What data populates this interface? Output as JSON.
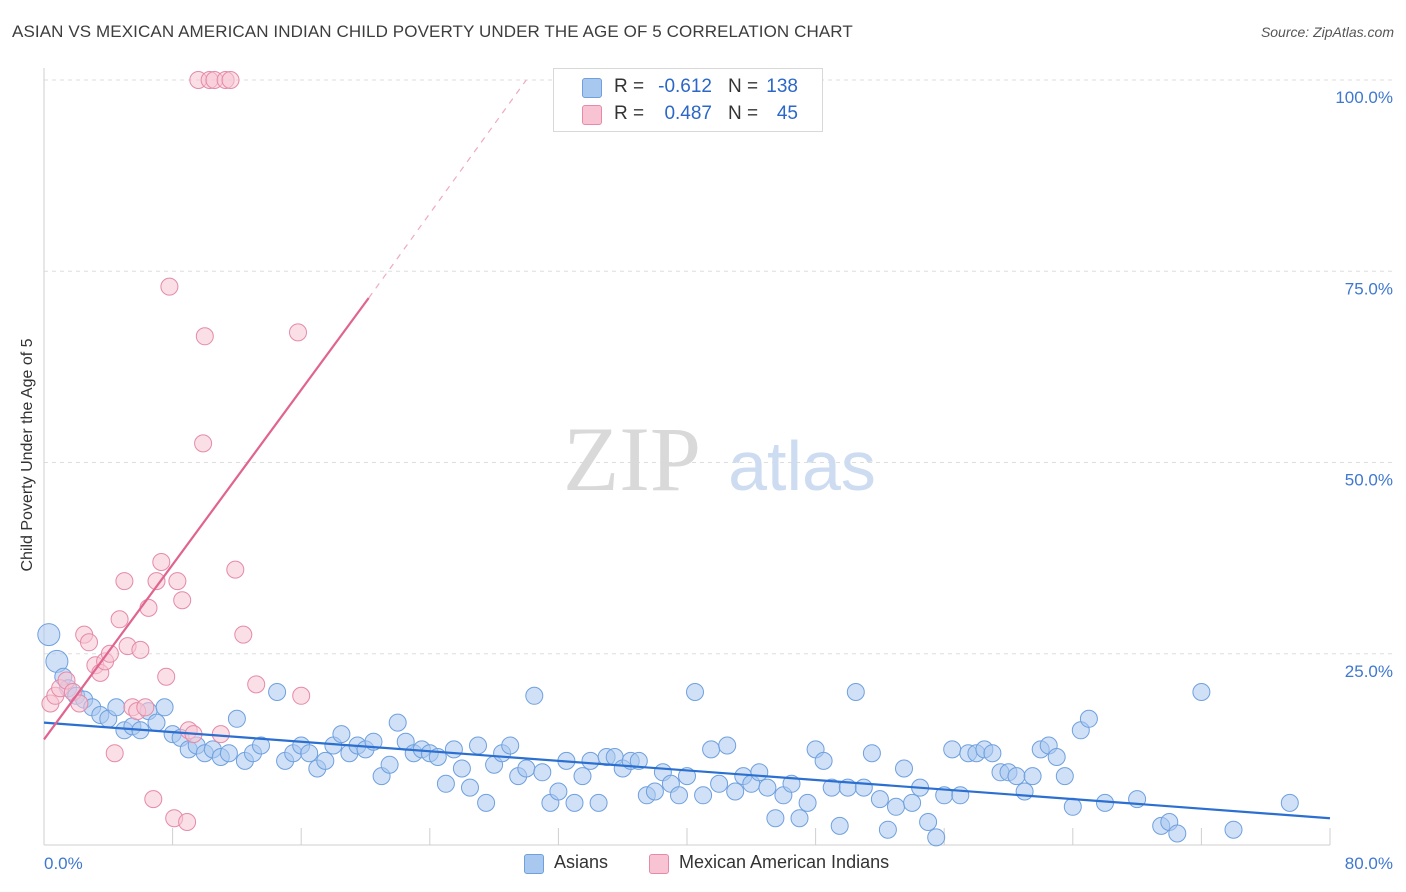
{
  "title": "ASIAN VS MEXICAN AMERICAN INDIAN CHILD POVERTY UNDER THE AGE OF 5 CORRELATION CHART",
  "source": "Source: ZipAtlas.com",
  "watermark": {
    "zip": "ZIP",
    "atlas": "atlas"
  },
  "legend": {
    "r_label": "R =",
    "n_label": "N =",
    "rows": [
      {
        "r": "-0.612",
        "n": "138",
        "color": "#a9c8f0",
        "border": "#6f9fdc"
      },
      {
        "r": "0.487",
        "n": "45",
        "color": "#f8c4d4",
        "border": "#e58aa8"
      }
    ]
  },
  "chart_data": {
    "type": "scatter",
    "xlabel": "",
    "ylabel": "Child Poverty Under the Age of 5",
    "xlim": [
      0,
      80
    ],
    "ylim": [
      0,
      100
    ],
    "x_ticks": [
      "0.0%",
      "80.0%"
    ],
    "y_ticks": [
      {
        "value": 25,
        "label": "25.0%"
      },
      {
        "value": 50,
        "label": "50.0%"
      },
      {
        "value": 75,
        "label": "75.0%"
      },
      {
        "value": 100,
        "label": "100.0%"
      }
    ],
    "grid": "horizontal dashed",
    "legend_position": "top-center",
    "series": [
      {
        "name": "Asians",
        "color": "#6fa0de",
        "fill": "#a9c8f0",
        "trend": {
          "x": [
            0,
            80
          ],
          "y": [
            16.0,
            3.5
          ],
          "color": "#2b6fd0"
        },
        "points": [
          [
            0.3,
            27.5
          ],
          [
            0.8,
            24
          ],
          [
            1.2,
            22
          ],
          [
            1.5,
            20.5
          ],
          [
            2.0,
            19.5
          ],
          [
            2.5,
            19
          ],
          [
            3.0,
            18
          ],
          [
            3.5,
            17
          ],
          [
            4.0,
            16.5
          ],
          [
            4.5,
            18
          ],
          [
            5.0,
            15
          ],
          [
            5.5,
            15.5
          ],
          [
            6.0,
            15
          ],
          [
            6.5,
            17.5
          ],
          [
            7.0,
            16
          ],
          [
            7.5,
            18
          ],
          [
            8.0,
            14.5
          ],
          [
            8.5,
            14
          ],
          [
            9.0,
            12.5
          ],
          [
            9.5,
            13
          ],
          [
            10.0,
            12
          ],
          [
            10.5,
            12.5
          ],
          [
            11.0,
            11.5
          ],
          [
            11.5,
            12
          ],
          [
            12.0,
            16.5
          ],
          [
            12.5,
            11
          ],
          [
            13.0,
            12
          ],
          [
            13.5,
            13
          ],
          [
            14.5,
            20
          ],
          [
            15.0,
            11
          ],
          [
            15.5,
            12
          ],
          [
            16.0,
            13
          ],
          [
            16.5,
            12
          ],
          [
            17.0,
            10
          ],
          [
            17.5,
            11
          ],
          [
            18.0,
            13
          ],
          [
            18.5,
            14.5
          ],
          [
            19.0,
            12
          ],
          [
            19.5,
            13
          ],
          [
            20.0,
            12.5
          ],
          [
            20.5,
            13.5
          ],
          [
            21.0,
            9
          ],
          [
            21.5,
            10.5
          ],
          [
            22.0,
            16
          ],
          [
            22.5,
            13.5
          ],
          [
            23.0,
            12
          ],
          [
            23.5,
            12.5
          ],
          [
            24.0,
            12
          ],
          [
            24.5,
            11.5
          ],
          [
            25.0,
            8
          ],
          [
            25.5,
            12.5
          ],
          [
            26.0,
            10
          ],
          [
            26.5,
            7.5
          ],
          [
            27.0,
            13
          ],
          [
            27.5,
            5.5
          ],
          [
            28.0,
            10.5
          ],
          [
            28.5,
            12
          ],
          [
            29.0,
            13
          ],
          [
            29.5,
            9
          ],
          [
            30.0,
            10
          ],
          [
            30.5,
            19.5
          ],
          [
            31.0,
            9.5
          ],
          [
            31.5,
            5.5
          ],
          [
            32.0,
            7
          ],
          [
            32.5,
            11
          ],
          [
            33.0,
            5.5
          ],
          [
            33.5,
            9
          ],
          [
            34.0,
            11
          ],
          [
            34.5,
            5.5
          ],
          [
            35.0,
            11.5
          ],
          [
            35.5,
            11.5
          ],
          [
            36.0,
            10
          ],
          [
            36.5,
            11
          ],
          [
            37.0,
            11
          ],
          [
            37.5,
            6.5
          ],
          [
            38.0,
            7
          ],
          [
            38.5,
            9.5
          ],
          [
            39.0,
            8
          ],
          [
            39.5,
            6.5
          ],
          [
            40.0,
            9
          ],
          [
            40.5,
            20
          ],
          [
            41.0,
            6.5
          ],
          [
            41.5,
            12.5
          ],
          [
            42.0,
            8
          ],
          [
            42.5,
            13
          ],
          [
            43.0,
            7
          ],
          [
            43.5,
            9
          ],
          [
            44.0,
            8
          ],
          [
            44.5,
            9.5
          ],
          [
            45.0,
            7.5
          ],
          [
            45.5,
            3.5
          ],
          [
            46.0,
            6.5
          ],
          [
            46.5,
            8
          ],
          [
            47.0,
            3.5
          ],
          [
            47.5,
            5.5
          ],
          [
            48.0,
            12.5
          ],
          [
            48.5,
            11
          ],
          [
            49.0,
            7.5
          ],
          [
            49.5,
            2.5
          ],
          [
            50.0,
            7.5
          ],
          [
            50.5,
            20
          ],
          [
            51.0,
            7.5
          ],
          [
            51.5,
            12
          ],
          [
            52.0,
            6
          ],
          [
            52.5,
            2
          ],
          [
            53.0,
            5
          ],
          [
            53.5,
            10
          ],
          [
            54.0,
            5.5
          ],
          [
            54.5,
            7.5
          ],
          [
            55.0,
            3
          ],
          [
            55.5,
            1
          ],
          [
            56.0,
            6.5
          ],
          [
            56.5,
            12.5
          ],
          [
            57.0,
            6.5
          ],
          [
            57.5,
            12
          ],
          [
            58.0,
            12
          ],
          [
            58.5,
            12.5
          ],
          [
            59.0,
            12
          ],
          [
            59.5,
            9.5
          ],
          [
            60.0,
            9.5
          ],
          [
            60.5,
            9
          ],
          [
            61.0,
            7
          ],
          [
            61.5,
            9
          ],
          [
            62.0,
            12.5
          ],
          [
            62.5,
            13
          ],
          [
            63.0,
            11.5
          ],
          [
            63.5,
            9
          ],
          [
            64.0,
            5
          ],
          [
            64.5,
            15
          ],
          [
            65.0,
            16.5
          ],
          [
            66.0,
            5.5
          ],
          [
            68.0,
            6
          ],
          [
            69.5,
            2.5
          ],
          [
            70.0,
            3
          ],
          [
            70.5,
            1.5
          ],
          [
            72.0,
            20
          ],
          [
            74.0,
            2
          ],
          [
            77.5,
            5.5
          ]
        ]
      },
      {
        "name": "Mexican American Indians",
        "color": "#e58aa8",
        "fill": "#f8c4d4",
        "trend": {
          "x": [
            0,
            20.2
          ],
          "y": [
            13.8,
            71.5
          ],
          "color": "#e0648f",
          "dashed_to": {
            "x": 30.0,
            "y": 100
          }
        },
        "points": [
          [
            0.4,
            18.5
          ],
          [
            0.7,
            19.5
          ],
          [
            1.0,
            20.5
          ],
          [
            1.4,
            21.5
          ],
          [
            1.8,
            20
          ],
          [
            2.2,
            18.5
          ],
          [
            2.5,
            27.5
          ],
          [
            2.8,
            26.5
          ],
          [
            3.2,
            23.5
          ],
          [
            3.5,
            22.5
          ],
          [
            3.8,
            24
          ],
          [
            4.1,
            25
          ],
          [
            4.4,
            12
          ],
          [
            4.7,
            29.5
          ],
          [
            5.0,
            34.5
          ],
          [
            5.2,
            26
          ],
          [
            5.5,
            18
          ],
          [
            5.8,
            17.5
          ],
          [
            6.0,
            25.5
          ],
          [
            6.3,
            18
          ],
          [
            6.5,
            31
          ],
          [
            6.8,
            6
          ],
          [
            7.0,
            34.5
          ],
          [
            7.3,
            37
          ],
          [
            7.6,
            22
          ],
          [
            7.8,
            73
          ],
          [
            8.1,
            3.5
          ],
          [
            8.3,
            34.5
          ],
          [
            8.6,
            32
          ],
          [
            8.9,
            3
          ],
          [
            9.0,
            15
          ],
          [
            9.3,
            14.5
          ],
          [
            9.6,
            100
          ],
          [
            9.9,
            52.5
          ],
          [
            10.0,
            66.5
          ],
          [
            10.3,
            100
          ],
          [
            10.6,
            100
          ],
          [
            11.0,
            14.5
          ],
          [
            11.3,
            100
          ],
          [
            11.6,
            100
          ],
          [
            11.9,
            36
          ],
          [
            12.4,
            27.5
          ],
          [
            13.2,
            21
          ],
          [
            15.8,
            67
          ],
          [
            16.0,
            19.5
          ]
        ]
      }
    ]
  },
  "bottom_legend": [
    "Asians",
    "Mexican American Indians"
  ]
}
